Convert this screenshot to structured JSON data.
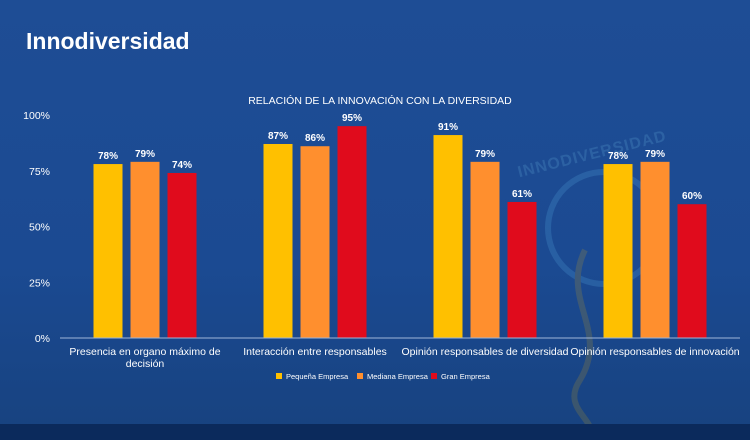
{
  "header": {
    "title": "Innodiversidad"
  },
  "watermark": {
    "text": "INNODIVERSIDAD"
  },
  "chart_data": {
    "type": "bar",
    "title": "RELACIÓN DE LA INNOVACIÓN CON LA DIVERSIDAD",
    "xlabel": "",
    "ylabel": "",
    "ylim": [
      0,
      100
    ],
    "yticks": [
      "0%",
      "25%",
      "50%",
      "75%",
      "100%"
    ],
    "ytick_values": [
      0,
      25,
      50,
      75,
      100
    ],
    "value_suffix": "%",
    "grid": false,
    "legend_position": "bottom",
    "categories": [
      [
        "Presencia en organo máximo de",
        "decisión"
      ],
      [
        "Interacción entre responsables"
      ],
      [
        "Opinión responsables de diversidad"
      ],
      [
        "Opinión responsables de innovación"
      ]
    ],
    "series": [
      {
        "name": "Pequeña Empresa",
        "color": "#ffc000",
        "values": [
          78,
          87,
          91,
          78
        ]
      },
      {
        "name": "Mediana Empresa",
        "color": "#ff8f2e",
        "values": [
          79,
          86,
          79,
          79
        ]
      },
      {
        "name": "Gran Empresa",
        "color": "#e00b1c",
        "values": [
          74,
          95,
          61,
          60
        ]
      }
    ],
    "colors": {
      "text": "#ffffff",
      "axis": "#9fb6d8"
    }
  }
}
